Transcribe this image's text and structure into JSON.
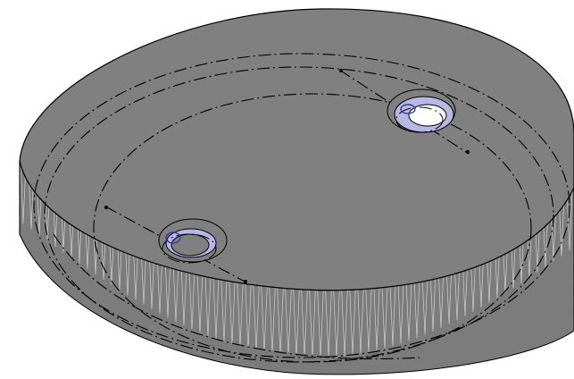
{
  "viewport": {
    "background": "#ffffff"
  },
  "part": {
    "shape": "round-dish",
    "colors": {
      "face": "#808080",
      "side": "#7c7c7c",
      "hatch": "#d0d0d0",
      "edge": "#000000",
      "hole_rim": "#b8b8e6",
      "hole_bore": "#ffffff",
      "hole_accent": "#3a3aa0"
    },
    "hidden_line_style": "dash-dot",
    "features": [
      {
        "name": "counterbore-hole-upper-right",
        "icon": "hole-icon"
      },
      {
        "name": "counterbore-hole-lower-left",
        "icon": "hole-icon"
      }
    ]
  }
}
